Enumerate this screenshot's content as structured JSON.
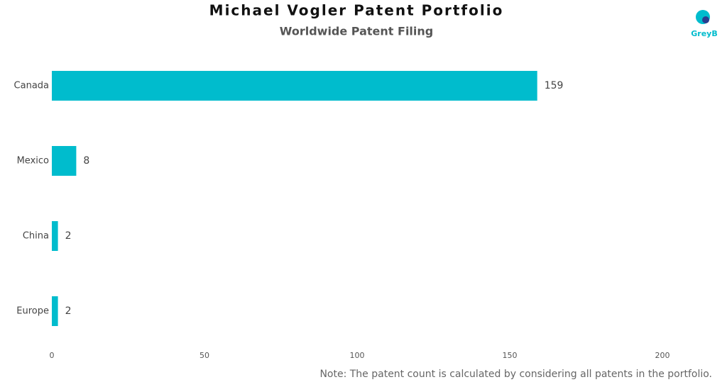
{
  "chart_data": {
    "type": "bar",
    "orientation": "horizontal",
    "title": "Michael Vogler Patent Portfolio",
    "subtitle": "Worldwide Patent Filing",
    "categories": [
      "Canada",
      "Mexico",
      "China",
      "Europe"
    ],
    "values": [
      159,
      8,
      2,
      2
    ],
    "color": "#00bccd",
    "xlim": [
      0,
      200
    ],
    "xticks": [
      0,
      50,
      100,
      150,
      200
    ],
    "grid": false,
    "note": "Note: The patent count is calculated by considering all patents in the portfolio.",
    "logo": "GreyB"
  }
}
